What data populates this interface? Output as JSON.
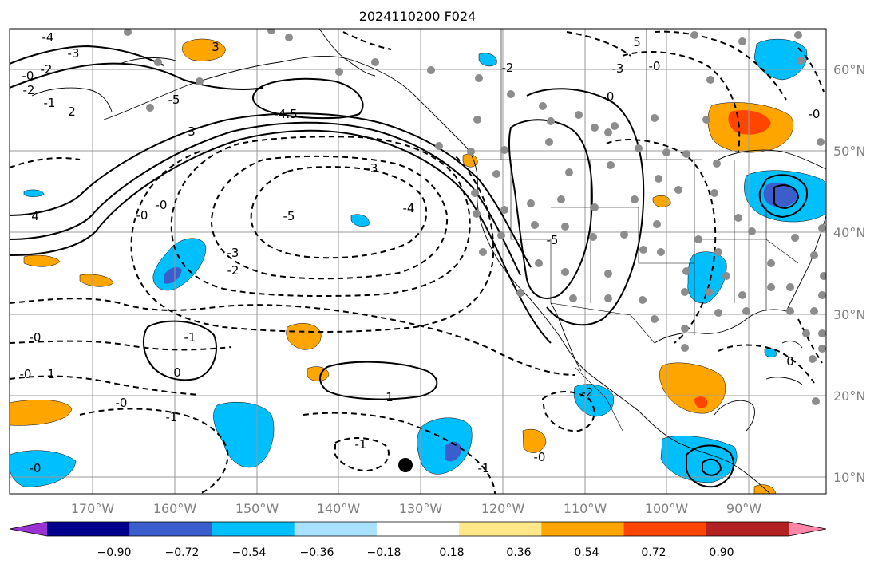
{
  "title": "2024110200 F024",
  "map": {
    "lon_ticks": [
      "170°W",
      "160°W",
      "150°W",
      "140°W",
      "130°W",
      "120°W",
      "110°W",
      "100°W",
      "90°W"
    ],
    "lat_ticks": [
      "60°N",
      "50°N",
      "40°N",
      "30°N",
      "20°N",
      "10°N"
    ]
  },
  "colorbar": {
    "tick_labels": [
      "−0.90",
      "−0.72",
      "−0.54",
      "−0.36",
      "−0.18",
      "0.18",
      "0.36",
      "0.54",
      "0.72",
      "0.90"
    ],
    "colors": [
      "#9b32d2",
      "#00008c",
      "#3a5fcd",
      "#00bfff",
      "#a8e0ff",
      "#ffffff",
      "#ffe88a",
      "#ffa500",
      "#ff4500",
      "#b22222",
      "#ff88aa"
    ]
  },
  "contour_labels": [
    "-4",
    "-3",
    "-2",
    "-0",
    "-2",
    "-1",
    "2",
    "-5",
    "3",
    "-4.5",
    "4",
    "-0",
    "-0",
    "3",
    "-3",
    "-5",
    "-4",
    "-3",
    "-2",
    "-0",
    "-1",
    "0",
    "-0",
    "1",
    "-0",
    "-1",
    "-1",
    "-0",
    "-0",
    "1",
    "-2",
    "-1",
    "-0",
    "-5",
    "5",
    "-3",
    "-0",
    "-2",
    "-0",
    "0"
  ]
}
